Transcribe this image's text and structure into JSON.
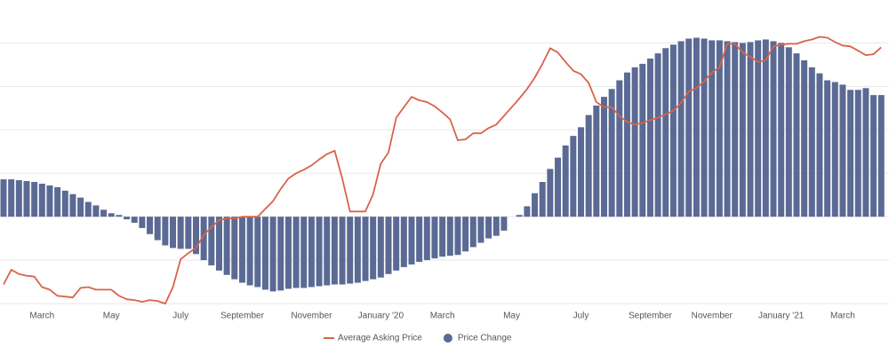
{
  "chart_data": {
    "type": "combo",
    "categories": [
      null,
      null,
      null,
      null,
      null,
      "March",
      null,
      null,
      null,
      null,
      null,
      null,
      null,
      null,
      "May",
      null,
      null,
      null,
      null,
      null,
      null,
      null,
      null,
      "July",
      null,
      null,
      null,
      null,
      null,
      null,
      null,
      "September",
      null,
      null,
      null,
      null,
      null,
      null,
      null,
      null,
      "November",
      null,
      null,
      null,
      null,
      null,
      null,
      null,
      null,
      "January '20",
      null,
      null,
      null,
      null,
      null,
      null,
      null,
      "March",
      null,
      null,
      null,
      null,
      null,
      null,
      null,
      null,
      "May",
      null,
      null,
      null,
      null,
      null,
      null,
      null,
      null,
      "July",
      null,
      null,
      null,
      null,
      null,
      null,
      null,
      null,
      "September",
      null,
      null,
      null,
      null,
      null,
      null,
      null,
      "November",
      null,
      null,
      null,
      null,
      null,
      null,
      null,
      null,
      "January '21",
      null,
      null,
      null,
      null,
      null,
      null,
      null,
      "March",
      null,
      null,
      null,
      null,
      null
    ],
    "series": [
      {
        "name": "Average Asking Price",
        "type": "line",
        "color": "#d9634a",
        "values": [
          -78,
          -61,
          -66,
          -68,
          -69,
          -81,
          -84,
          -91,
          -92,
          -93,
          -82,
          -81,
          -84,
          -84,
          -84,
          -91,
          -95,
          -96,
          -98,
          -96,
          -97,
          -100,
          -81,
          -49,
          -42,
          -36,
          -21,
          -12,
          -4,
          -2,
          -2,
          0,
          0,
          0,
          9,
          18,
          32,
          44,
          50,
          54,
          59,
          66,
          72,
          76,
          44,
          6,
          6,
          6,
          26,
          61,
          74,
          114,
          126,
          138,
          134,
          132,
          127,
          120,
          112,
          88,
          89,
          96,
          96,
          102,
          106,
          116,
          126,
          136,
          147,
          160,
          176,
          194,
          189,
          178,
          168,
          164,
          154,
          132,
          126,
          126,
          116,
          109,
          106,
          108,
          111,
          114,
          118,
          122,
          131,
          144,
          148,
          156,
          166,
          172,
          199,
          199,
          189,
          184,
          178,
          180,
          196,
          198,
          199,
          199,
          202,
          204,
          207,
          206,
          201,
          197,
          196,
          191,
          186,
          187,
          195
        ]
      },
      {
        "name": "Price Change",
        "type": "bar",
        "color": "#5a6a94",
        "values": [
          43,
          43,
          42,
          41,
          40,
          38,
          36,
          34,
          30,
          26,
          22,
          17,
          13,
          8,
          4,
          2,
          -3,
          -7,
          -13,
          -20,
          -27,
          -33,
          -36,
          -37,
          -37,
          -43,
          -50,
          -56,
          -62,
          -67,
          -72,
          -76,
          -79,
          -81,
          -84,
          -86,
          -85,
          -83,
          -82,
          -82,
          -81,
          -80,
          -79,
          -78,
          -78,
          -77,
          -76,
          -74,
          -72,
          -70,
          -66,
          -62,
          -58,
          -55,
          -52,
          -50,
          -48,
          -46,
          -45,
          -44,
          -40,
          -35,
          -30,
          -25,
          -22,
          -16,
          0,
          2,
          12,
          27,
          40,
          55,
          68,
          82,
          93,
          103,
          117,
          128,
          138,
          147,
          157,
          166,
          172,
          176,
          182,
          188,
          194,
          198,
          202,
          205,
          206,
          205,
          203,
          203,
          202,
          201,
          200,
          201,
          203,
          204,
          202,
          200,
          195,
          188,
          180,
          172,
          165,
          157,
          155,
          152,
          146,
          146,
          148,
          140,
          140
        ]
      }
    ],
    "ylim": [
      -103,
      229
    ],
    "yticks": [
      -100,
      -50,
      0,
      50,
      100,
      150,
      200
    ],
    "grid": true
  }
}
